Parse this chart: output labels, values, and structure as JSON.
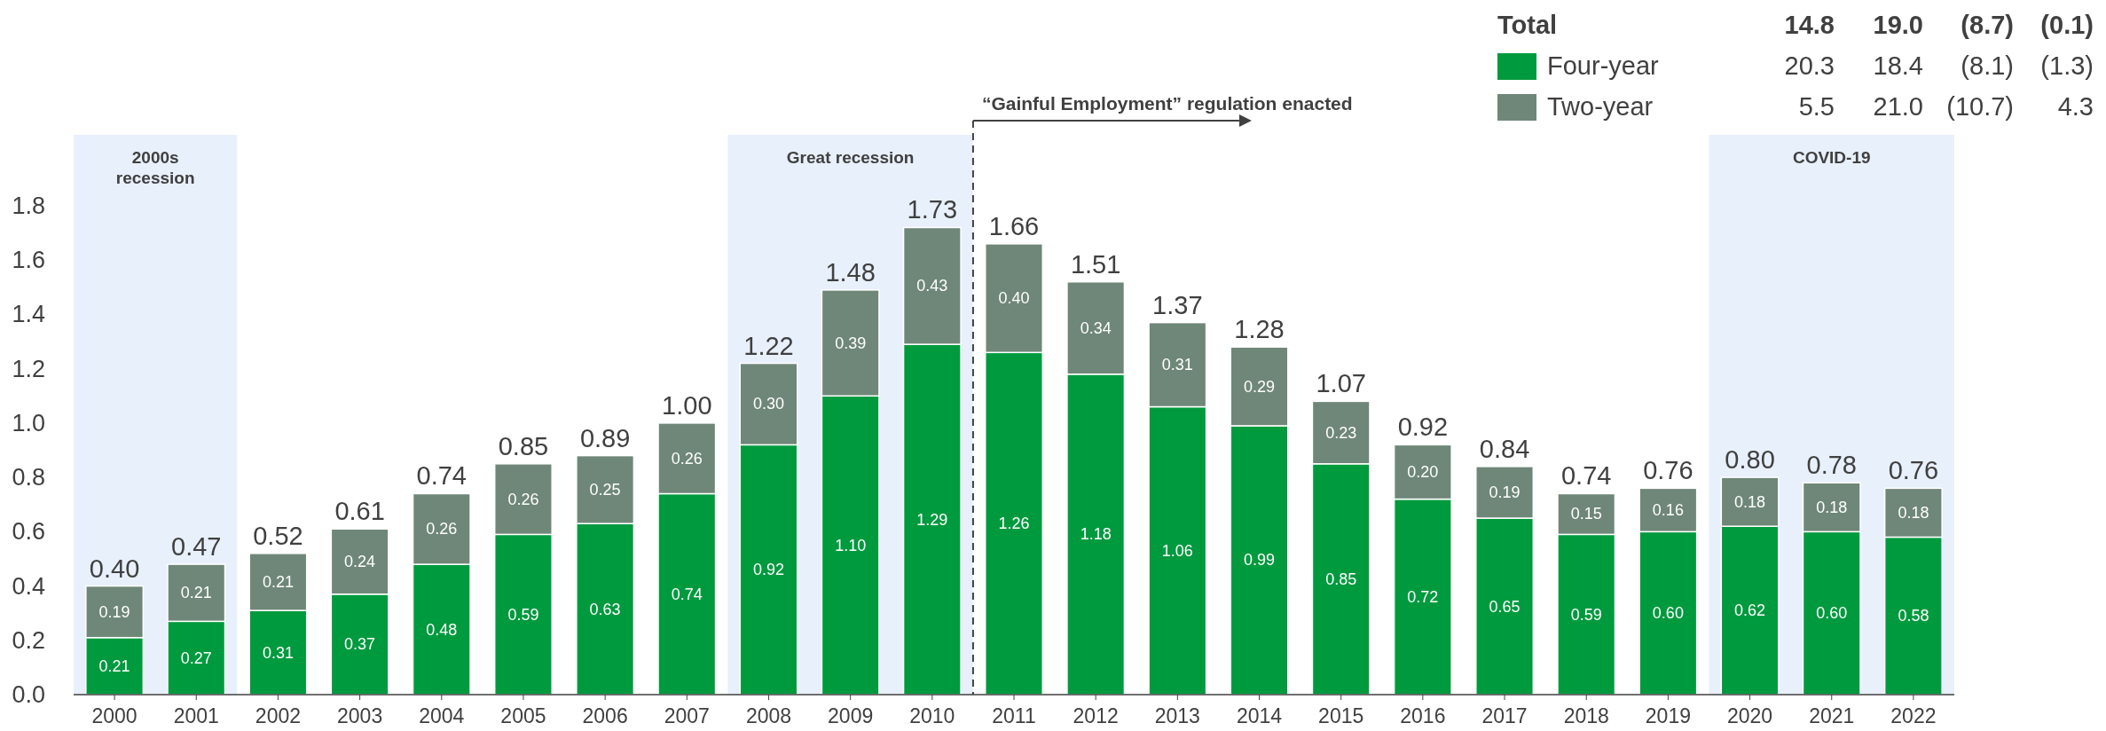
{
  "chart_data": {
    "type": "bar",
    "stacked": true,
    "x": [
      2000,
      2001,
      2002,
      2003,
      2004,
      2005,
      2006,
      2007,
      2008,
      2009,
      2010,
      2011,
      2012,
      2013,
      2014,
      2015,
      2016,
      2017,
      2018,
      2019,
      2020,
      2021,
      2022
    ],
    "xlim": [
      1999.5,
      2022.5
    ],
    "xticks": [
      2000,
      2001,
      2002,
      2003,
      2004,
      2005,
      2006,
      2007,
      2008,
      2009,
      2010,
      2011,
      2012,
      2013,
      2014,
      2015,
      2016,
      2017,
      2018,
      2019,
      2020,
      2021,
      2022
    ],
    "ylim": [
      0,
      1.8
    ],
    "yticks": [
      {
        "value": 0,
        "label": "0.0"
      },
      {
        "value": 0.2,
        "label": "0.2"
      },
      {
        "value": 0.4,
        "label": "0.4"
      },
      {
        "value": 0.6,
        "label": "0.6"
      },
      {
        "value": 0.8,
        "label": "0.8"
      },
      {
        "value": 1,
        "label": "1.0"
      },
      {
        "value": 1.2,
        "label": "1.2"
      },
      {
        "value": 1.4,
        "label": "1.4"
      },
      {
        "value": 1.6,
        "label": "1.6"
      },
      {
        "value": 1.8,
        "label": "1.8"
      }
    ],
    "series": [
      {
        "name": "Four-year",
        "color": "#009a3e",
        "values": [
          0.21,
          0.27,
          0.31,
          0.37,
          0.48,
          0.59,
          0.63,
          0.74,
          0.92,
          1.1,
          1.29,
          1.26,
          1.18,
          1.06,
          0.99,
          0.85,
          0.72,
          0.65,
          0.59,
          0.6,
          0.62,
          0.6,
          0.58
        ],
        "value_labels": [
          "0.21",
          "0.27",
          "0.31",
          "0.37",
          "0.48",
          "0.59",
          "0.63",
          "0.74",
          "0.92",
          "1.10",
          "1.29",
          "1.26",
          "1.18",
          "1.06",
          "0.99",
          "0.85",
          "0.72",
          "0.65",
          "0.59",
          "0.60",
          "0.62",
          "0.60",
          "0.58"
        ]
      },
      {
        "name": "Two-year",
        "color": "#6f8778",
        "values": [
          0.19,
          0.21,
          0.21,
          0.24,
          0.26,
          0.26,
          0.25,
          0.26,
          0.3,
          0.39,
          0.43,
          0.4,
          0.34,
          0.31,
          0.29,
          0.23,
          0.2,
          0.19,
          0.15,
          0.16,
          0.18,
          0.18,
          0.18
        ],
        "value_labels": [
          "0.19",
          "0.21",
          "0.21",
          "0.24",
          "0.26",
          "0.26",
          "0.25",
          "0.26",
          "0.30",
          "0.39",
          "0.43",
          "0.40",
          "0.34",
          "0.31",
          "0.29",
          "0.23",
          "0.20",
          "0.19",
          "0.15",
          "0.16",
          "0.18",
          "0.18",
          "0.18"
        ]
      }
    ],
    "totals": [
      "0.40",
      "0.47",
      "0.52",
      "0.61",
      "0.74",
      "0.85",
      "0.89",
      "1.00",
      "1.22",
      "1.48",
      "1.73",
      "1.66",
      "1.51",
      "1.37",
      "1.28",
      "1.07",
      "0.92",
      "0.84",
      "0.74",
      "0.76",
      "0.80",
      "0.78",
      "0.76"
    ],
    "bands": [
      {
        "axis": "x",
        "from": 1999.5,
        "to": 2001.5,
        "label": "2000s recession",
        "color": "#e8f0fc"
      },
      {
        "axis": "x",
        "from": 2007.5,
        "to": 2010.5,
        "label": "Great recession",
        "color": "#e8f0fc"
      },
      {
        "axis": "x",
        "from": 2019.5,
        "to": 2022.5,
        "label": "COVID-19",
        "color": "#e8f0fc"
      }
    ],
    "ref_lines": [
      {
        "axis": "x",
        "value": 2010.5,
        "label": "“Gainful Employment” regulation enacted",
        "color": "#404040",
        "line_style": "dashed"
      }
    ],
    "legend": "top right",
    "annotations": [
      "Total",
      "14.8",
      "19.0",
      "(8.7)",
      "(0.1)",
      "20.3",
      "18.4",
      "(8.1)",
      "(1.3)",
      "5.5",
      "21.0",
      "(10.7)",
      "4.3"
    ]
  }
}
